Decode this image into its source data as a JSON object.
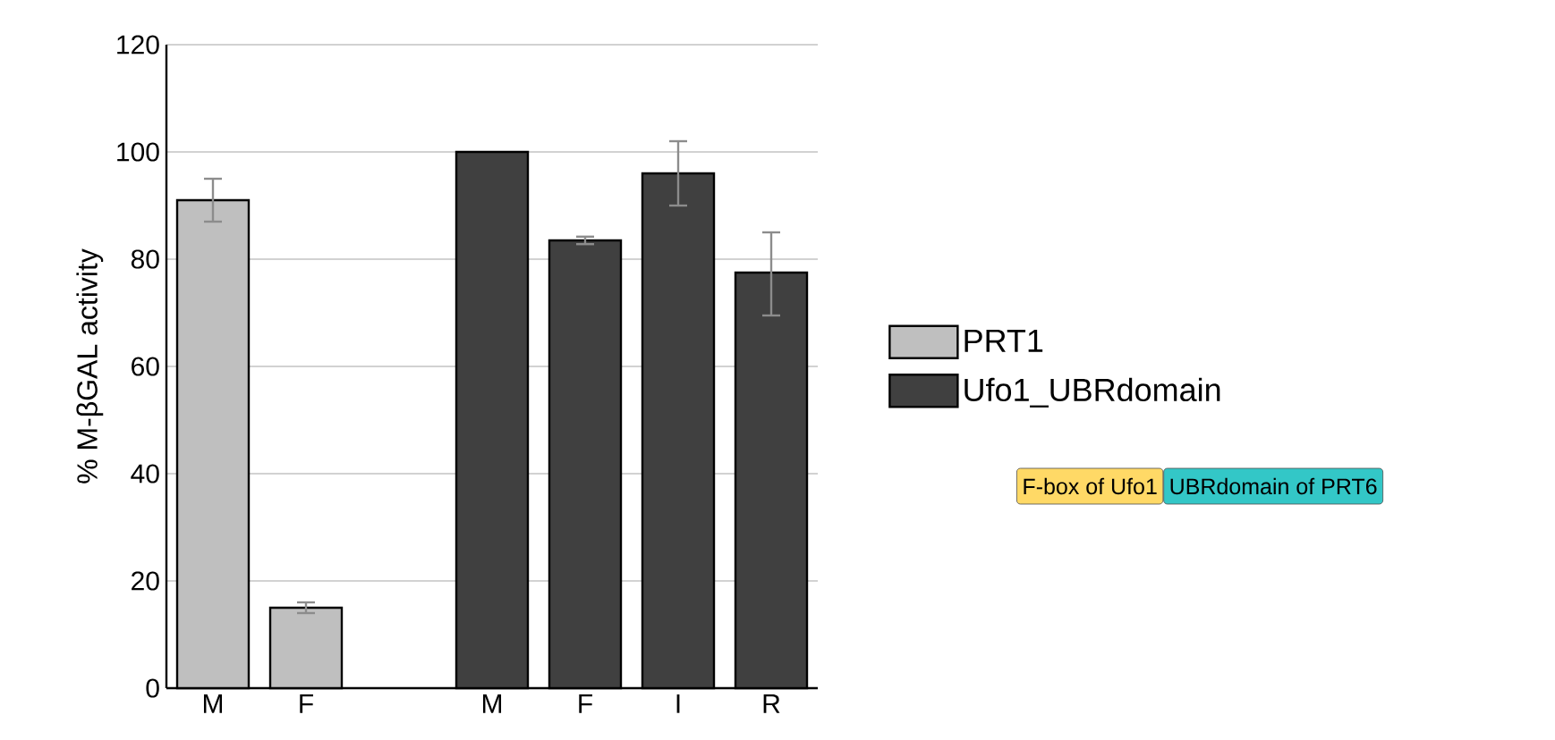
{
  "chart_data": {
    "type": "bar",
    "ylabel": "% M-βGAL activity",
    "categories": [
      "M",
      "F",
      null,
      "M",
      "F",
      "I",
      "R"
    ],
    "series": [
      {
        "name": "PRT1",
        "color": "#bfbfbf",
        "values": [
          91,
          15,
          null,
          null,
          null,
          null,
          null
        ],
        "errors": [
          4,
          1,
          null,
          null,
          null,
          null,
          null
        ]
      },
      {
        "name": "Ufo1_UBRdomain",
        "color": "#404040",
        "values": [
          null,
          null,
          null,
          100,
          83.5,
          96,
          77.5
        ],
        "errors": [
          null,
          null,
          null,
          null,
          0.7,
          6,
          [
            69.5,
            85
          ]
        ]
      }
    ],
    "ylim": [
      0,
      120
    ],
    "yticks": [
      0,
      20,
      40,
      60,
      80,
      100,
      120
    ],
    "grid": "y",
    "legend": "right",
    "annotations": [
      "F-box of Ufo1",
      "UBRdomain of PRT6"
    ]
  }
}
